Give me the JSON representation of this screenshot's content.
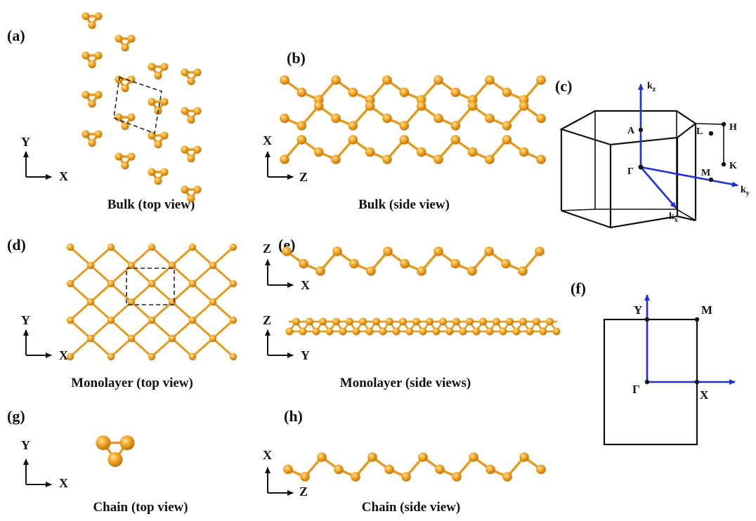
{
  "panels": {
    "a": {
      "label": "(a)",
      "caption": "Bulk (top view)",
      "axes": {
        "v": "Y",
        "h": "X"
      }
    },
    "b": {
      "label": "(b)",
      "caption": "Bulk (side view)",
      "axes": {
        "v": "X",
        "h": "Z"
      }
    },
    "c": {
      "label": "(c)",
      "points": {
        "kz": "k",
        "kz_sub": "z",
        "A": "A",
        "L": "L",
        "H": "H",
        "K": "K",
        "M": "M",
        "G": "Γ",
        "kx": "k",
        "kx_sub": "x",
        "ky": "k",
        "ky_sub": "y"
      }
    },
    "d": {
      "label": "(d)",
      "caption": "Monolayer (top view)",
      "axes": {
        "v": "Y",
        "h": "X"
      }
    },
    "e": {
      "label": "(e)",
      "caption": "Monolayer (side views)",
      "axes1": {
        "v": "Z",
        "h": "X"
      },
      "axes2": {
        "v": "Z",
        "h": "Y"
      }
    },
    "f": {
      "label": "(f)",
      "points": {
        "Y": "Y",
        "M": "M",
        "G": "Γ",
        "X": "X"
      }
    },
    "g": {
      "label": "(g)",
      "caption": "Chain (top view)",
      "axes": {
        "v": "Y",
        "h": "X"
      }
    },
    "h": {
      "label": "(h)",
      "caption": "Chain (side view)",
      "axes": {
        "v": "X",
        "h": "Z"
      }
    }
  },
  "colors": {
    "atom": "#F0A020",
    "atom_dark": "#C77A08",
    "bond": "#E39A1E",
    "k_vector": "#1E2FD6",
    "line": "#111111"
  }
}
